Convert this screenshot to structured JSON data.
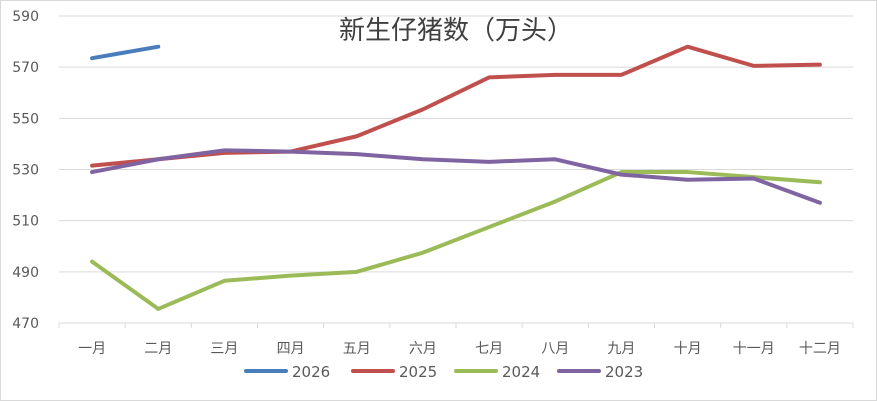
{
  "chart_data": {
    "type": "line",
    "title": "新生仔猪数（万头）",
    "xlabel": "",
    "ylabel": "",
    "categories": [
      "一月",
      "二月",
      "三月",
      "四月",
      "五月",
      "六月",
      "七月",
      "八月",
      "九月",
      "十月",
      "十一月",
      "十二月"
    ],
    "ylim": [
      470,
      590
    ],
    "yticks": [
      470,
      490,
      510,
      530,
      550,
      570,
      590
    ],
    "grid": true,
    "legend": "bottom",
    "series": [
      {
        "name": "2026",
        "color": "#4a7ebb",
        "values": [
          573.5,
          578,
          null,
          null,
          null,
          null,
          null,
          null,
          null,
          null,
          null,
          null
        ]
      },
      {
        "name": "2025",
        "color": "#c0504d",
        "values": [
          531.5,
          534,
          536.5,
          537,
          543,
          553.5,
          566,
          567,
          567,
          578,
          570.5,
          571
        ]
      },
      {
        "name": "2024",
        "color": "#9bbb59",
        "values": [
          494,
          475.5,
          486.5,
          488.5,
          490,
          497.5,
          507.5,
          517.5,
          529,
          529,
          527,
          525
        ]
      },
      {
        "name": "2023",
        "color": "#8064a2",
        "values": [
          529,
          534,
          537.5,
          537,
          536,
          534,
          533,
          534,
          528,
          526,
          526.5,
          517
        ]
      }
    ]
  }
}
